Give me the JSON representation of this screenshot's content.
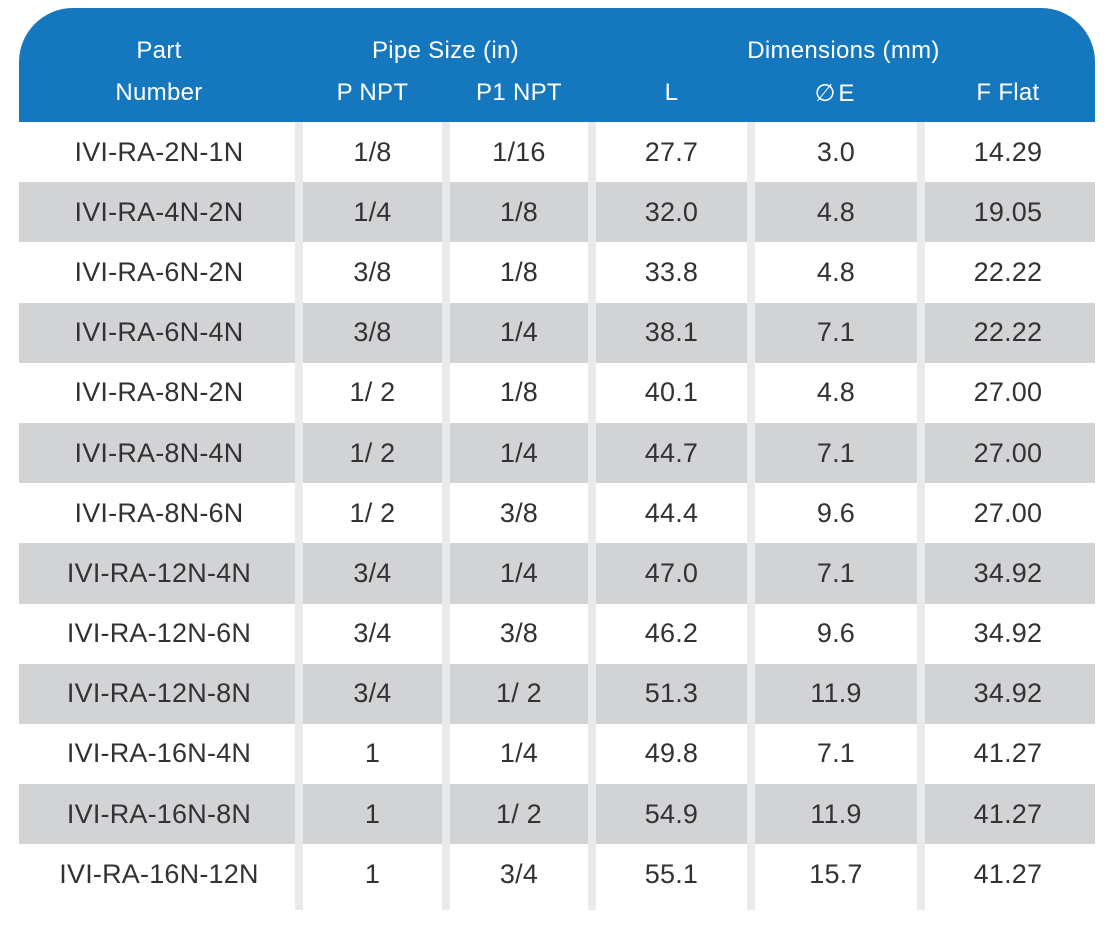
{
  "table": {
    "header": {
      "part_line1": "Part",
      "part_line2": "Number",
      "pipe_group": "Pipe Size (in)",
      "dims_group": "Dimensions (mm)",
      "p_npt": "P NPT",
      "p1_npt": "P1 NPT",
      "l": "L",
      "e": "∅E",
      "f_flat": "F Flat"
    },
    "rows": [
      {
        "part": "IVI-RA-2N-1N",
        "p_npt": "1/8",
        "p1_npt": "1/16",
        "l": "27.7",
        "e": "3.0",
        "f_flat": "14.29"
      },
      {
        "part": "IVI-RA-4N-2N",
        "p_npt": "1/4",
        "p1_npt": "1/8",
        "l": "32.0",
        "e": "4.8",
        "f_flat": "19.05"
      },
      {
        "part": "IVI-RA-6N-2N",
        "p_npt": "3/8",
        "p1_npt": "1/8",
        "l": "33.8",
        "e": "4.8",
        "f_flat": "22.22"
      },
      {
        "part": "IVI-RA-6N-4N",
        "p_npt": "3/8",
        "p1_npt": "1/4",
        "l": "38.1",
        "e": "7.1",
        "f_flat": "22.22"
      },
      {
        "part": "IVI-RA-8N-2N",
        "p_npt": "1/ 2",
        "p1_npt": "1/8",
        "l": "40.1",
        "e": "4.8",
        "f_flat": "27.00"
      },
      {
        "part": "IVI-RA-8N-4N",
        "p_npt": "1/ 2",
        "p1_npt": "1/4",
        "l": "44.7",
        "e": "7.1",
        "f_flat": "27.00"
      },
      {
        "part": "IVI-RA-8N-6N",
        "p_npt": "1/ 2",
        "p1_npt": "3/8",
        "l": "44.4",
        "e": "9.6",
        "f_flat": "27.00"
      },
      {
        "part": "IVI-RA-12N-4N",
        "p_npt": "3/4",
        "p1_npt": "1/4",
        "l": "47.0",
        "e": "7.1",
        "f_flat": "34.92"
      },
      {
        "part": "IVI-RA-12N-6N",
        "p_npt": "3/4",
        "p1_npt": "3/8",
        "l": "46.2",
        "e": "9.6",
        "f_flat": "34.92"
      },
      {
        "part": "IVI-RA-12N-8N",
        "p_npt": "3/4",
        "p1_npt": "1/ 2",
        "l": "51.3",
        "e": "11.9",
        "f_flat": "34.92"
      },
      {
        "part": "IVI-RA-16N-4N",
        "p_npt": "1",
        "p1_npt": "1/4",
        "l": "49.8",
        "e": "7.1",
        "f_flat": "41.27"
      },
      {
        "part": "IVI-RA-16N-8N",
        "p_npt": "1",
        "p1_npt": "1/ 2",
        "l": "54.9",
        "e": "11.9",
        "f_flat": "41.27"
      },
      {
        "part": "IVI-RA-16N-12N",
        "p_npt": "1",
        "p1_npt": "3/4",
        "l": "55.1",
        "e": "15.7",
        "f_flat": "41.27"
      }
    ]
  },
  "colors": {
    "header_bg": "#1577BE",
    "header_text": "#FFFFFF",
    "alt_row": "#D1D3D4",
    "separator": "#E9EAEC",
    "text": "#323234"
  }
}
